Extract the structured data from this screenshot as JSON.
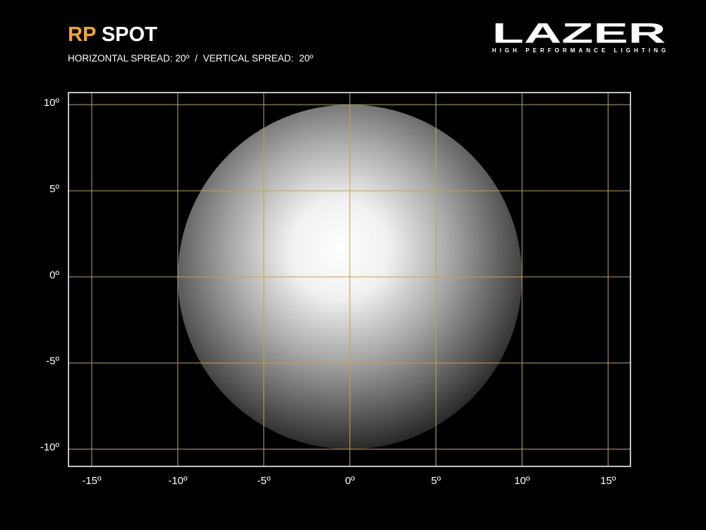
{
  "chart_data": {
    "type": "beam",
    "title": {
      "model": "RP",
      "name": "SPOT"
    },
    "subtitle": {
      "horizontal_label": "HORIZONTAL SPREAD:",
      "separator": "/",
      "vertical_label": "VERTICAL SPREAD:"
    },
    "beam": {
      "horizontal_spread": {
        "value": 20,
        "label": "20º"
      },
      "vertical_spread": {
        "value": 20,
        "label": "20º"
      },
      "color": "#ffffff"
    },
    "logo": {
      "brand": "LAZER",
      "tagline": "HIGH PERFORMANCE LIGHTING"
    },
    "title_color": "#f5a623",
    "grid": true,
    "grid_color": "#c9a23c",
    "xlim": [
      -16.35,
      16.3
    ],
    "ylim": [
      -11,
      10.7
    ],
    "xticks": [
      {
        "value": -15,
        "label": "-15º"
      },
      {
        "value": -10,
        "label": "-10º"
      },
      {
        "value": -5,
        "label": "-5º"
      },
      {
        "value": 0,
        "label": "0º"
      },
      {
        "value": 5,
        "label": "5º"
      },
      {
        "value": 10,
        "label": "10º"
      },
      {
        "value": 15,
        "label": "15º"
      }
    ],
    "yticks": [
      {
        "value": 10,
        "label": "10º"
      },
      {
        "value": 5,
        "label": "5º"
      },
      {
        "value": 0,
        "label": "0º"
      },
      {
        "value": -5,
        "label": "-5º"
      },
      {
        "value": -10,
        "label": "-10º"
      }
    ]
  }
}
